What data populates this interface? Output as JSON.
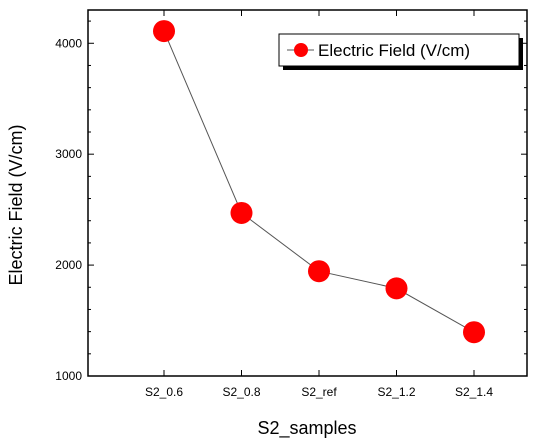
{
  "chart_data": {
    "type": "line",
    "categories": [
      "S2_0.6",
      "S2_0.8",
      "S2_ref",
      "S2_1.2",
      "S2_1.4"
    ],
    "series": [
      {
        "name": "Electric Field (V/cm)",
        "values": [
          4110,
          2470,
          1945,
          1790,
          1395
        ]
      }
    ],
    "xlabel": "S2_samples",
    "ylabel": "Electric Field (V/cm)",
    "ylim": [
      1000,
      4300
    ],
    "yticks": [
      1000,
      2000,
      3000,
      4000
    ],
    "yticks_labels": [
      "1000",
      "2000",
      "3000",
      "4000"
    ],
    "grid": false,
    "legend": "top-right",
    "colors": {
      "marker": "#ff0000",
      "line": "#555555",
      "frame": "#000000"
    }
  }
}
